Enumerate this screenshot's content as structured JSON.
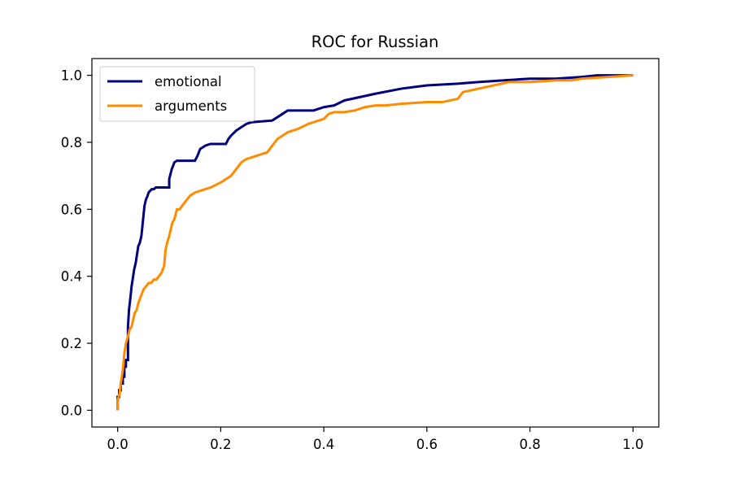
{
  "chart_data": {
    "type": "line",
    "title": "ROC for Russian",
    "xlabel": "",
    "ylabel": "",
    "xlim": [
      -0.05,
      1.05
    ],
    "ylim": [
      -0.05,
      1.05
    ],
    "xticks": [
      "0.0",
      "0.2",
      "0.4",
      "0.6",
      "0.8",
      "1.0"
    ],
    "yticks": [
      "0.0",
      "0.2",
      "0.4",
      "0.6",
      "0.8",
      "1.0"
    ],
    "grid": false,
    "legend_position": "top-left",
    "series": [
      {
        "name": "emotional",
        "color": "#00007f",
        "x": [
          0,
          0,
          0.003,
          0.003,
          0.006,
          0.006,
          0.01,
          0.01,
          0.013,
          0.013,
          0.016,
          0.016,
          0.02,
          0.02,
          0.022,
          0.025,
          0.027,
          0.03,
          0.032,
          0.035,
          0.038,
          0.04,
          0.043,
          0.046,
          0.05,
          0.052,
          0.055,
          0.058,
          0.06,
          0.063,
          0.066,
          0.07,
          0.074,
          0.08,
          0.09,
          0.1,
          0.1,
          0.105,
          0.11,
          0.115,
          0.12,
          0.15,
          0.155,
          0.16,
          0.17,
          0.18,
          0.21,
          0.215,
          0.22,
          0.23,
          0.24,
          0.25,
          0.26,
          0.3,
          0.31,
          0.33,
          0.38,
          0.4,
          0.42,
          0.44,
          0.47,
          0.5,
          0.55,
          0.6,
          0.66,
          0.7,
          0.75,
          0.8,
          0.85,
          0.9,
          0.93,
          1.0
        ],
        "y": [
          0,
          0.04,
          0.04,
          0.06,
          0.06,
          0.08,
          0.08,
          0.1,
          0.1,
          0.13,
          0.13,
          0.15,
          0.15,
          0.25,
          0.3,
          0.34,
          0.37,
          0.4,
          0.42,
          0.44,
          0.47,
          0.49,
          0.5,
          0.52,
          0.58,
          0.61,
          0.63,
          0.64,
          0.65,
          0.655,
          0.66,
          0.66,
          0.665,
          0.665,
          0.665,
          0.665,
          0.69,
          0.72,
          0.74,
          0.745,
          0.745,
          0.745,
          0.76,
          0.78,
          0.79,
          0.795,
          0.795,
          0.81,
          0.82,
          0.835,
          0.845,
          0.855,
          0.86,
          0.865,
          0.875,
          0.895,
          0.895,
          0.905,
          0.91,
          0.925,
          0.935,
          0.945,
          0.96,
          0.97,
          0.975,
          0.98,
          0.985,
          0.99,
          0.99,
          0.995,
          1.0,
          1.0
        ]
      },
      {
        "name": "arguments",
        "color": "#ff8c00",
        "x": [
          0,
          0,
          0.004,
          0.006,
          0.01,
          0.013,
          0.016,
          0.02,
          0.023,
          0.027,
          0.03,
          0.033,
          0.037,
          0.04,
          0.045,
          0.05,
          0.055,
          0.06,
          0.065,
          0.07,
          0.075,
          0.08,
          0.085,
          0.09,
          0.093,
          0.096,
          0.1,
          0.103,
          0.106,
          0.11,
          0.115,
          0.12,
          0.13,
          0.14,
          0.15,
          0.17,
          0.18,
          0.2,
          0.21,
          0.22,
          0.23,
          0.24,
          0.25,
          0.27,
          0.28,
          0.29,
          0.3,
          0.31,
          0.33,
          0.35,
          0.37,
          0.38,
          0.4,
          0.41,
          0.42,
          0.44,
          0.46,
          0.48,
          0.5,
          0.52,
          0.55,
          0.6,
          0.63,
          0.66,
          0.67,
          0.7,
          0.73,
          0.76,
          0.8,
          0.85,
          0.88,
          0.9,
          0.95,
          1.0
        ],
        "y": [
          0,
          0.03,
          0.05,
          0.08,
          0.12,
          0.17,
          0.2,
          0.22,
          0.24,
          0.25,
          0.27,
          0.29,
          0.3,
          0.32,
          0.34,
          0.36,
          0.37,
          0.38,
          0.38,
          0.39,
          0.39,
          0.4,
          0.41,
          0.43,
          0.48,
          0.5,
          0.52,
          0.54,
          0.56,
          0.57,
          0.6,
          0.6,
          0.62,
          0.64,
          0.65,
          0.66,
          0.665,
          0.68,
          0.69,
          0.7,
          0.72,
          0.74,
          0.75,
          0.76,
          0.765,
          0.77,
          0.79,
          0.81,
          0.83,
          0.84,
          0.855,
          0.86,
          0.87,
          0.885,
          0.89,
          0.89,
          0.895,
          0.905,
          0.91,
          0.91,
          0.915,
          0.92,
          0.92,
          0.93,
          0.95,
          0.96,
          0.97,
          0.98,
          0.98,
          0.985,
          0.985,
          0.99,
          0.995,
          1.0
        ]
      }
    ]
  }
}
